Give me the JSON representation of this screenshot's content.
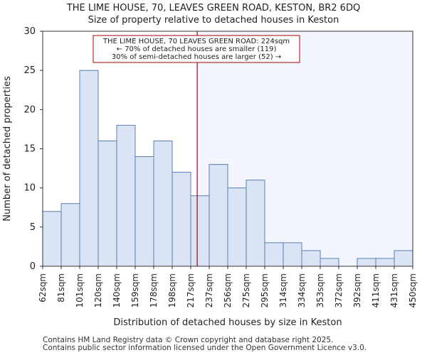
{
  "title_line1": "THE LIME HOUSE, 70, LEAVES GREEN ROAD, KESTON, BR2 6DQ",
  "title_line2": "Size of property relative to detached houses in Keston",
  "footer_line1": "Contains HM Land Registry data © Crown copyright and database right 2025.",
  "footer_line2": "Contains public sector information licensed under the Open Government Licence v3.0.",
  "colors": {
    "bar_fill": "#dae4f4",
    "bar_stroke": "#5b7fae",
    "highlight_region": "#f2f5fd",
    "marker_line": "#aa0000",
    "annotation_border": "#aa0000"
  },
  "chart_data": {
    "type": "bar",
    "title": "Size of property relative to detached houses in Keston",
    "xlabel": "Distribution of detached houses by size in Keston",
    "ylabel": "Number of detached properties",
    "ylim": [
      0,
      30
    ],
    "yticks": [
      0,
      5,
      10,
      15,
      20,
      25,
      30
    ],
    "bin_edges": [
      "62sqm",
      "81sqm",
      "101sqm",
      "120sqm",
      "140sqm",
      "159sqm",
      "178sqm",
      "198sqm",
      "217sqm",
      "237sqm",
      "256sqm",
      "275sqm",
      "295sqm",
      "314sqm",
      "334sqm",
      "353sqm",
      "372sqm",
      "392sqm",
      "411sqm",
      "431sqm",
      "450sqm"
    ],
    "values": [
      7,
      8,
      25,
      16,
      18,
      14,
      16,
      12,
      9,
      13,
      10,
      11,
      3,
      3,
      2,
      1,
      0,
      1,
      1,
      2
    ],
    "marker_value_sqm": 224,
    "marker_bin_position": 8.35,
    "annotation": {
      "line1": "THE LIME HOUSE, 70 LEAVES GREEN ROAD: 224sqm",
      "line2": "← 70% of detached houses are smaller (119)",
      "line3": "30% of semi-detached houses are larger (52) →"
    },
    "grid": false,
    "legend": "none"
  }
}
